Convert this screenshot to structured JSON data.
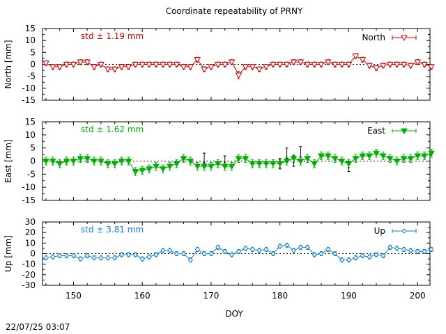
{
  "title": "Coordinate repeatability of PRNY",
  "xlabel": "DOY",
  "timestamp": "22/07/25 03:07",
  "colors": {
    "north": "#cc0000",
    "east": "#00b000",
    "up": "#1080d0",
    "errorbar": "#000000",
    "zero_line": "#000000"
  },
  "chart_data": [
    {
      "type": "line",
      "panel": "north",
      "ylabel": "North [mm]",
      "legend": "North",
      "legend_placement": "top-right",
      "annotation": "std ± 1.19 mm",
      "marker": "open-triangle-down",
      "xlim": [
        145.5,
        201.8
      ],
      "ylim": [
        -15,
        15
      ],
      "yticks": [
        "15",
        "10",
        "5",
        "0",
        "-5",
        "-10",
        "-15"
      ],
      "x": [
        146,
        147,
        148,
        149,
        150,
        151,
        152,
        153,
        154,
        155,
        156,
        157,
        158,
        159,
        160,
        161,
        162,
        163,
        164,
        165,
        166,
        167,
        168,
        169,
        170,
        171,
        172,
        173,
        174,
        175,
        176,
        177,
        178,
        179,
        180,
        181,
        182,
        183,
        184,
        185,
        186,
        187,
        188,
        189,
        190,
        191,
        192,
        193,
        194,
        195,
        196,
        197,
        198,
        199,
        200,
        201,
        202
      ],
      "y": [
        0.5,
        -1,
        -1,
        0,
        0,
        1,
        1,
        -1,
        0,
        -2,
        -2,
        -1,
        -1,
        0,
        0,
        0,
        0,
        0,
        0,
        0,
        -1,
        -1,
        2,
        -2,
        -1,
        0,
        0,
        1,
        -4.5,
        -1,
        -1,
        -2,
        -1,
        0,
        0,
        0,
        1,
        1,
        0,
        0,
        0,
        1,
        0,
        0,
        0,
        3.5,
        2,
        -0.5,
        -1.5,
        -0.5,
        0,
        0,
        0,
        -0.5,
        1,
        0,
        -1
      ],
      "err": [
        1,
        1,
        1,
        1,
        1,
        1,
        1,
        1,
        1,
        1,
        1,
        1,
        1,
        1,
        1,
        1,
        1,
        1,
        1,
        1,
        1,
        1,
        1,
        1,
        1,
        1,
        1,
        1,
        1.5,
        1,
        1,
        1,
        1,
        1,
        1,
        1,
        1,
        1,
        1,
        1,
        1,
        1,
        1,
        1,
        1,
        1,
        1,
        1,
        1,
        1,
        1,
        1,
        1,
        1,
        1,
        1,
        1
      ]
    },
    {
      "type": "line",
      "panel": "east",
      "ylabel": "East [mm]",
      "legend": "East",
      "legend_placement": "top-right",
      "annotation": "std ± 1.62 mm",
      "marker": "filled-triangle-down",
      "xlim": [
        145.5,
        201.8
      ],
      "ylim": [
        -15,
        15
      ],
      "yticks": [
        "15",
        "10",
        "5",
        "0",
        "-5",
        "-10",
        "-15"
      ],
      "x": [
        146,
        147,
        148,
        149,
        150,
        151,
        152,
        153,
        154,
        155,
        156,
        157,
        158,
        159,
        160,
        161,
        162,
        163,
        164,
        165,
        166,
        167,
        168,
        169,
        170,
        171,
        172,
        173,
        174,
        175,
        176,
        177,
        178,
        179,
        180,
        181,
        182,
        183,
        184,
        185,
        186,
        187,
        188,
        189,
        190,
        191,
        192,
        193,
        194,
        195,
        196,
        197,
        198,
        199,
        200,
        201,
        202
      ],
      "y": [
        0,
        0,
        -1,
        0,
        0,
        1,
        1,
        0,
        0,
        -1,
        -1,
        0,
        0,
        -4,
        -3.5,
        -3,
        -2,
        -3,
        -2,
        -1,
        1,
        0,
        -2,
        -2,
        -2,
        -1,
        -2,
        -2,
        1,
        1,
        -1,
        -1,
        -1,
        -1,
        -1,
        0,
        1,
        0,
        1,
        -1,
        2,
        2,
        1,
        0,
        -1,
        1,
        2,
        2,
        3,
        2,
        1,
        0,
        1,
        1,
        2,
        2,
        3
      ],
      "err": [
        1.5,
        1.5,
        1.5,
        1.5,
        1.5,
        1.5,
        1.5,
        1.5,
        1.5,
        1.5,
        1.5,
        1.5,
        1.5,
        1.5,
        1.5,
        1.5,
        1.5,
        1.5,
        1.5,
        1.5,
        1.5,
        1.5,
        1.5,
        1.5,
        1.5,
        1.5,
        1.5,
        1.5,
        1.5,
        1.5,
        1.5,
        1.5,
        1.5,
        1.5,
        1.5,
        1.5,
        1.5,
        1.5,
        1.5,
        1.5,
        1.5,
        1.5,
        1.5,
        1.5,
        1.5,
        1.5,
        1.5,
        1.5,
        1.5,
        1.5,
        1.5,
        1.5,
        1.5,
        1.5,
        1.5,
        1.5,
        1.5
      ],
      "black_points": {
        "x": [
          169,
          172,
          180,
          181,
          182,
          183,
          190
        ],
        "y": [
          1,
          0,
          -1,
          3,
          0,
          3.5,
          -2
        ],
        "err": [
          2,
          2,
          2,
          2,
          2,
          2,
          2
        ]
      }
    },
    {
      "type": "line",
      "panel": "up",
      "ylabel": "Up [mm]",
      "legend": "Up",
      "legend_placement": "top-right",
      "annotation": "std ± 3.81 mm",
      "marker": "open-diamond",
      "xlim": [
        145.5,
        201.8
      ],
      "ylim": [
        -30,
        30
      ],
      "yticks": [
        "30",
        "20",
        "10",
        "0",
        "-10",
        "-20",
        "-30"
      ],
      "x": [
        146,
        147,
        148,
        149,
        150,
        151,
        152,
        153,
        154,
        155,
        156,
        157,
        158,
        159,
        160,
        161,
        162,
        163,
        164,
        165,
        166,
        167,
        168,
        169,
        170,
        171,
        172,
        173,
        174,
        175,
        176,
        177,
        178,
        179,
        180,
        181,
        182,
        183,
        184,
        185,
        186,
        187,
        188,
        189,
        190,
        191,
        192,
        193,
        194,
        195,
        196,
        197,
        198,
        199,
        200,
        201,
        202
      ],
      "y": [
        -4,
        -3,
        -2,
        -2,
        -2,
        -5,
        -2,
        -4,
        -4,
        -4,
        -4,
        -1,
        -1,
        -1,
        -5,
        -3,
        -1,
        3,
        3,
        0,
        0,
        -6,
        4,
        0,
        0,
        6,
        2,
        -1,
        2,
        5,
        4,
        3,
        4,
        0,
        7,
        8,
        3,
        6,
        6,
        -1,
        0,
        4,
        0,
        -6,
        -6,
        -4,
        -2,
        -3,
        -1,
        -2,
        6,
        5,
        4,
        3,
        2,
        2,
        4
      ],
      "err": [
        2,
        2,
        2,
        2,
        2,
        2,
        2,
        2,
        2,
        2,
        2,
        2,
        2,
        2,
        2,
        2,
        2,
        2,
        2,
        2,
        2,
        2,
        2,
        2,
        2,
        2,
        2,
        2,
        2,
        2,
        2,
        2,
        2,
        2,
        2,
        2,
        2,
        2,
        2,
        2,
        2,
        2,
        2,
        2,
        2,
        2,
        2,
        2,
        2,
        2,
        2,
        2,
        2,
        2,
        2,
        2,
        2
      ]
    }
  ],
  "xticks": [
    "150",
    "160",
    "170",
    "180",
    "190",
    "200"
  ],
  "xtick_values": [
    150,
    160,
    170,
    180,
    190,
    200
  ]
}
